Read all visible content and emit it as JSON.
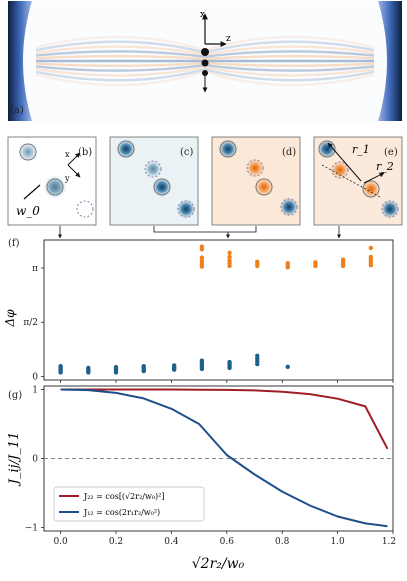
{
  "panel_a": {
    "label": "(a)",
    "axis_x_label": "x",
    "axis_z_label": "z"
  },
  "insets": [
    {
      "label": "(b)",
      "tint": "#ffffff",
      "annotation": "w_0",
      "axes": [
        "x",
        "y"
      ]
    },
    {
      "label": "(c)",
      "tint": "#e9f2f5"
    },
    {
      "label": "(d)",
      "tint": "#fbe6d2"
    },
    {
      "label": "(e)",
      "tint": "#fbe9da",
      "annotations": [
        "r_1",
        "r_2"
      ]
    }
  ],
  "colors": {
    "blue": "#1f5f8b",
    "orange": "#ef7f1a",
    "red": "#a01f24",
    "navy": "#1e4f8a",
    "mirror": "#3d67b7"
  },
  "chart_data": [
    {
      "panel": "(f)",
      "type": "scatter",
      "ylabel": "Δφ",
      "yticks": [
        "0",
        "π/2",
        "π"
      ],
      "ylim": [
        -0.1,
        3.95
      ],
      "xlim": [
        -0.06,
        1.2
      ],
      "grid": false,
      "series": [
        {
          "color": "#1f5f8b",
          "points": [
            [
              0.0,
              0.12
            ],
            [
              0.0,
              0.17
            ],
            [
              0.0,
              0.2
            ],
            [
              0.0,
              0.24
            ],
            [
              0.0,
              0.28
            ],
            [
              0.0,
              0.3
            ],
            [
              0.1,
              0.12
            ],
            [
              0.1,
              0.16
            ],
            [
              0.1,
              0.2
            ],
            [
              0.1,
              0.25
            ],
            [
              0.2,
              0.12
            ],
            [
              0.2,
              0.16
            ],
            [
              0.2,
              0.22
            ],
            [
              0.2,
              0.27
            ],
            [
              0.3,
              0.16
            ],
            [
              0.3,
              0.2
            ],
            [
              0.3,
              0.25
            ],
            [
              0.3,
              0.3
            ],
            [
              0.41,
              0.2
            ],
            [
              0.41,
              0.24
            ],
            [
              0.41,
              0.28
            ],
            [
              0.41,
              0.32
            ],
            [
              0.51,
              0.22
            ],
            [
              0.51,
              0.28
            ],
            [
              0.51,
              0.34
            ],
            [
              0.51,
              0.4
            ],
            [
              0.51,
              0.46
            ],
            [
              0.61,
              0.25
            ],
            [
              0.61,
              0.3
            ],
            [
              0.61,
              0.36
            ],
            [
              0.61,
              0.42
            ],
            [
              0.71,
              0.36
            ],
            [
              0.71,
              0.44
            ],
            [
              0.71,
              0.52
            ],
            [
              0.71,
              0.6
            ],
            [
              0.82,
              0.28
            ]
          ]
        },
        {
          "color": "#ef7f1a",
          "points": [
            [
              0.51,
              3.18
            ],
            [
              0.51,
              3.26
            ],
            [
              0.51,
              3.34
            ],
            [
              0.51,
              3.44
            ],
            [
              0.51,
              3.68
            ],
            [
              0.51,
              3.76
            ],
            [
              0.61,
              3.2
            ],
            [
              0.61,
              3.28
            ],
            [
              0.61,
              3.36
            ],
            [
              0.61,
              3.46
            ],
            [
              0.61,
              3.58
            ],
            [
              0.71,
              3.2
            ],
            [
              0.71,
              3.26
            ],
            [
              0.71,
              3.32
            ],
            [
              0.82,
              3.16
            ],
            [
              0.82,
              3.22
            ],
            [
              0.82,
              3.28
            ],
            [
              0.92,
              3.2
            ],
            [
              0.92,
              3.26
            ],
            [
              0.92,
              3.3
            ],
            [
              1.02,
              3.2
            ],
            [
              1.02,
              3.26
            ],
            [
              1.02,
              3.32
            ],
            [
              1.02,
              3.38
            ],
            [
              1.12,
              3.22
            ],
            [
              1.12,
              3.3
            ],
            [
              1.12,
              3.38
            ],
            [
              1.12,
              3.46
            ],
            [
              1.12,
              3.72
            ]
          ]
        }
      ]
    },
    {
      "panel": "(g)",
      "type": "line",
      "xlabel": "√2r₂/w₀",
      "ylabel": "J_ij/J_11",
      "xlim": [
        -0.06,
        1.2
      ],
      "ylim": [
        -1.05,
        1.05
      ],
      "xticks": [
        "0.0",
        "0.2",
        "0.4",
        "0.6",
        "0.8",
        "1.0",
        "1.2"
      ],
      "yticks": [
        "−1",
        "0",
        "1"
      ],
      "reference_line": 0,
      "legend_position": "lower-left",
      "series": [
        {
          "name": "J₂₂ = cos[(√2r₂/w₀)²]",
          "color": "#a01f24",
          "x": [
            0.0,
            0.1,
            0.2,
            0.3,
            0.4,
            0.5,
            0.6,
            0.7,
            0.8,
            0.9,
            1.0,
            1.1,
            1.18
          ],
          "y": [
            1.0,
            1.0,
            1.0,
            1.0,
            0.999,
            0.997,
            0.994,
            0.986,
            0.968,
            0.932,
            0.866,
            0.754,
            0.14
          ]
        },
        {
          "name": "J₁₂ = cos(2r₁r₂/w₀²)",
          "color": "#1e4f8a",
          "x": [
            0.0,
            0.1,
            0.2,
            0.3,
            0.4,
            0.5,
            0.6,
            0.7,
            0.8,
            0.9,
            1.0,
            1.1,
            1.18
          ],
          "y": [
            1.0,
            0.99,
            0.95,
            0.87,
            0.72,
            0.5,
            0.05,
            -0.23,
            -0.48,
            -0.68,
            -0.84,
            -0.94,
            -0.98
          ]
        }
      ]
    }
  ]
}
